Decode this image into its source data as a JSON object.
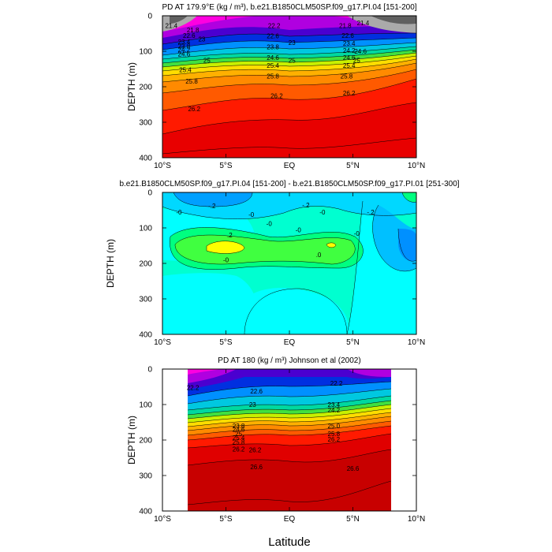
{
  "figure": {
    "xlabel": "Latitude"
  },
  "chart_data": [
    {
      "type": "contour",
      "title": "PD AT 179.9°E (kg / m³), b.e21.B1850CLM50SP.f09_g17.PI.04 [151-200]",
      "ylabel": "DEPTH (m)",
      "xlim": [
        -10,
        10
      ],
      "ylim": [
        400,
        0
      ],
      "xticks": [
        {
          "v": -10,
          "label": "10°S"
        },
        {
          "v": -5,
          "label": "5°S"
        },
        {
          "v": 0,
          "label": "EQ"
        },
        {
          "v": 5,
          "label": "5°N"
        },
        {
          "v": 10,
          "label": "10°N"
        }
      ],
      "yticks": [
        0,
        100,
        200,
        300,
        400
      ],
      "levels": [
        21.4,
        21.8,
        22.2,
        22.6,
        23.0,
        23.4,
        23.8,
        24.2,
        24.6,
        25.0,
        25.4,
        25.8,
        26.2
      ],
      "contour_labels": [
        {
          "x": -9.3,
          "depth": 28,
          "text": "21.4"
        },
        {
          "x": -7.6,
          "depth": 40,
          "text": "21.8"
        },
        {
          "x": -7.9,
          "depth": 55,
          "text": "22.6"
        },
        {
          "x": -8.3,
          "depth": 73,
          "text": "23.4"
        },
        {
          "x": -8.3,
          "depth": 85,
          "text": "23.8"
        },
        {
          "x": -8.3,
          "depth": 95,
          "text": "24.2"
        },
        {
          "x": -8.3,
          "depth": 108,
          "text": "24.6"
        },
        {
          "x": -6.9,
          "depth": 65,
          "text": "23"
        },
        {
          "x": -6.5,
          "depth": 125,
          "text": "25"
        },
        {
          "x": -8.2,
          "depth": 152,
          "text": "25.4"
        },
        {
          "x": -7.7,
          "depth": 184,
          "text": "25.8"
        },
        {
          "x": -7.5,
          "depth": 262,
          "text": "26.2"
        },
        {
          "x": -1.2,
          "depth": 28,
          "text": "22.2"
        },
        {
          "x": -1.3,
          "depth": 57,
          "text": "22.6"
        },
        {
          "x": -1.3,
          "depth": 88,
          "text": "23.8"
        },
        {
          "x": -1.3,
          "depth": 118,
          "text": "24.6"
        },
        {
          "x": -1.3,
          "depth": 140,
          "text": "25.4"
        },
        {
          "x": -1.3,
          "depth": 170,
          "text": "25.8"
        },
        {
          "x": -1.0,
          "depth": 225,
          "text": "26.2"
        },
        {
          "x": 0.2,
          "depth": 75,
          "text": "23"
        },
        {
          "x": 0.2,
          "depth": 125,
          "text": "25"
        },
        {
          "x": 4.4,
          "depth": 28,
          "text": "21.8"
        },
        {
          "x": 4.6,
          "depth": 55,
          "text": "22.6"
        },
        {
          "x": 4.7,
          "depth": 78,
          "text": "23.4"
        },
        {
          "x": 4.7,
          "depth": 98,
          "text": "24.2"
        },
        {
          "x": 4.7,
          "depth": 118,
          "text": "24.6"
        },
        {
          "x": 4.7,
          "depth": 140,
          "text": "25.4"
        },
        {
          "x": 4.5,
          "depth": 170,
          "text": "25.8"
        },
        {
          "x": 4.7,
          "depth": 218,
          "text": "26.2"
        },
        {
          "x": 5.6,
          "depth": 100,
          "text": "24.6"
        },
        {
          "x": 5.3,
          "depth": 125,
          "text": "25"
        },
        {
          "x": 5.8,
          "depth": 20,
          "text": "21.4"
        }
      ]
    },
    {
      "type": "contour",
      "title": "b.e21.B1850CLM50SP.f09_g17.PI.04 [151-200] - b.e21.B1850CLM50SP.f09_g17.PI.01 [251-300]",
      "ylabel": "DEPTH (m)",
      "xlim": [
        -10,
        10
      ],
      "ylim": [
        400,
        0
      ],
      "xticks": [
        {
          "v": -10,
          "label": "10°S"
        },
        {
          "v": -5,
          "label": "5°S"
        },
        {
          "v": 0,
          "label": "EQ"
        },
        {
          "v": 5,
          "label": "5°N"
        },
        {
          "v": 10,
          "label": "10°N"
        }
      ],
      "yticks": [
        0,
        100,
        200,
        300,
        400
      ],
      "levels": [
        -0.2,
        0.0,
        0.2
      ],
      "contour_labels": [
        {
          "x": -6.1,
          "depth": 38,
          "text": "-.2"
        },
        {
          "x": -8.7,
          "depth": 55,
          "text": "-0"
        },
        {
          "x": -3.0,
          "depth": 62,
          "text": "-0"
        },
        {
          "x": -1.6,
          "depth": 88,
          "text": "-0"
        },
        {
          "x": -4.7,
          "depth": 120,
          "text": ".2"
        },
        {
          "x": -5.0,
          "depth": 190,
          "text": "-0"
        },
        {
          "x": 1.3,
          "depth": 35,
          "text": "-.2"
        },
        {
          "x": 2.6,
          "depth": 55,
          "text": "-0"
        },
        {
          "x": 0.7,
          "depth": 105,
          "text": "-0"
        },
        {
          "x": 2.3,
          "depth": 175,
          "text": ".0"
        },
        {
          "x": 6.4,
          "depth": 55,
          "text": "-.2"
        },
        {
          "x": 5.3,
          "depth": 115,
          "text": "-0"
        }
      ]
    },
    {
      "type": "contour",
      "title": "PD AT 180 (kg / m³) Johnson et al (2002)",
      "ylabel": "DEPTH (m)",
      "xlim": [
        -10,
        10
      ],
      "ylim": [
        400,
        0
      ],
      "data_xrange": [
        -8,
        8
      ],
      "xticks": [
        {
          "v": -10,
          "label": "10°S"
        },
        {
          "v": -5,
          "label": "5°S"
        },
        {
          "v": 0,
          "label": "EQ"
        },
        {
          "v": 5,
          "label": "5°N"
        },
        {
          "v": 10,
          "label": "10°N"
        }
      ],
      "yticks": [
        0,
        100,
        200,
        300,
        400
      ],
      "levels": [
        22.2,
        22.6,
        23.0,
        23.4,
        23.8,
        24.2,
        24.6,
        25.0,
        25.4,
        25.8,
        26.2,
        26.6
      ],
      "contour_labels": [
        {
          "x": -7.6,
          "depth": 52,
          "text": "22.2"
        },
        {
          "x": -2.6,
          "depth": 62,
          "text": "22.6"
        },
        {
          "x": -2.9,
          "depth": 100,
          "text": "23"
        },
        {
          "x": -4.0,
          "depth": 160,
          "text": "23.8"
        },
        {
          "x": -4.0,
          "depth": 170,
          "text": "24.6"
        },
        {
          "x": -4.0,
          "depth": 182,
          "text": "25"
        },
        {
          "x": -4.0,
          "depth": 193,
          "text": "25.4"
        },
        {
          "x": -4.0,
          "depth": 205,
          "text": "25.8"
        },
        {
          "x": -4.0,
          "depth": 225,
          "text": "26.2"
        },
        {
          "x": -2.7,
          "depth": 228,
          "text": "26.2"
        },
        {
          "x": -2.6,
          "depth": 275,
          "text": "26.6"
        },
        {
          "x": 3.7,
          "depth": 40,
          "text": "22.2"
        },
        {
          "x": 3.5,
          "depth": 100,
          "text": "23.4"
        },
        {
          "x": 3.5,
          "depth": 115,
          "text": "24.2"
        },
        {
          "x": 3.5,
          "depth": 160,
          "text": "25.0"
        },
        {
          "x": 3.5,
          "depth": 182,
          "text": "25.8"
        },
        {
          "x": 3.5,
          "depth": 198,
          "text": "26.2"
        },
        {
          "x": 5.0,
          "depth": 280,
          "text": "26.6"
        }
      ]
    }
  ]
}
